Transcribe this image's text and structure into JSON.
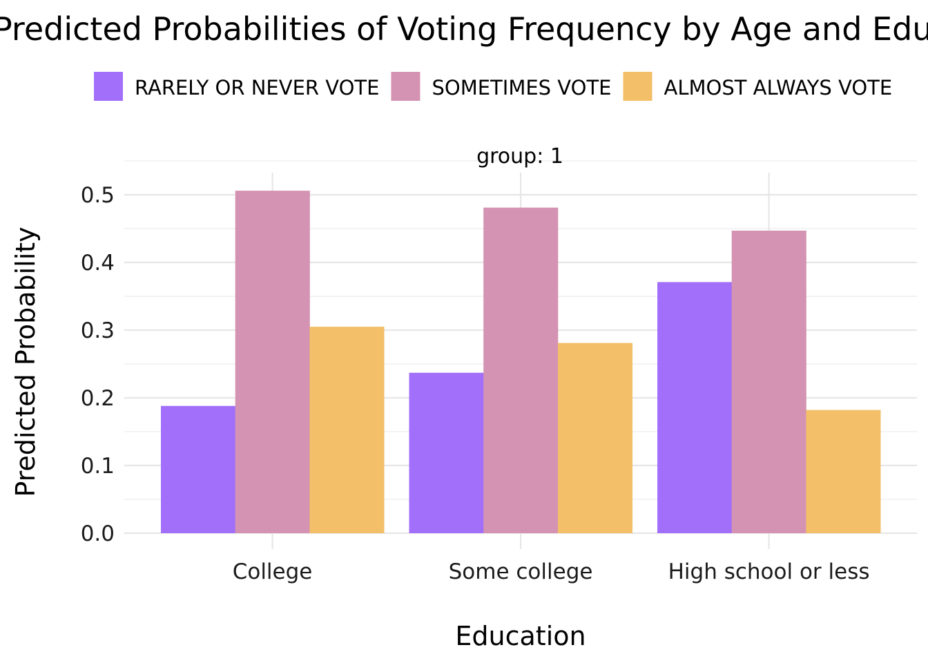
{
  "chart_data": {
    "type": "bar",
    "title": "Predicted Probabilities of Voting Frequency by Age and Education",
    "facet_label": "group: 1",
    "xlabel": "Education",
    "ylabel": "Predicted Probability",
    "categories": [
      "College",
      "Some college",
      "High school or less"
    ],
    "series": [
      {
        "name": "RARELY OR NEVER VOTE",
        "color": "#a26ffa",
        "values": [
          0.188,
          0.237,
          0.371
        ]
      },
      {
        "name": "SOMETIMES VOTE",
        "color": "#d493b2",
        "values": [
          0.506,
          0.481,
          0.447
        ]
      },
      {
        "name": "ALMOST ALWAYS VOTE",
        "color": "#f3bf69",
        "values": [
          0.305,
          0.281,
          0.182
        ]
      }
    ],
    "ylim": [
      0,
      0.5
    ],
    "yticks": [
      "0.0",
      "0.1",
      "0.2",
      "0.3",
      "0.4",
      "0.5"
    ],
    "grid": true,
    "legend_position": "top"
  }
}
